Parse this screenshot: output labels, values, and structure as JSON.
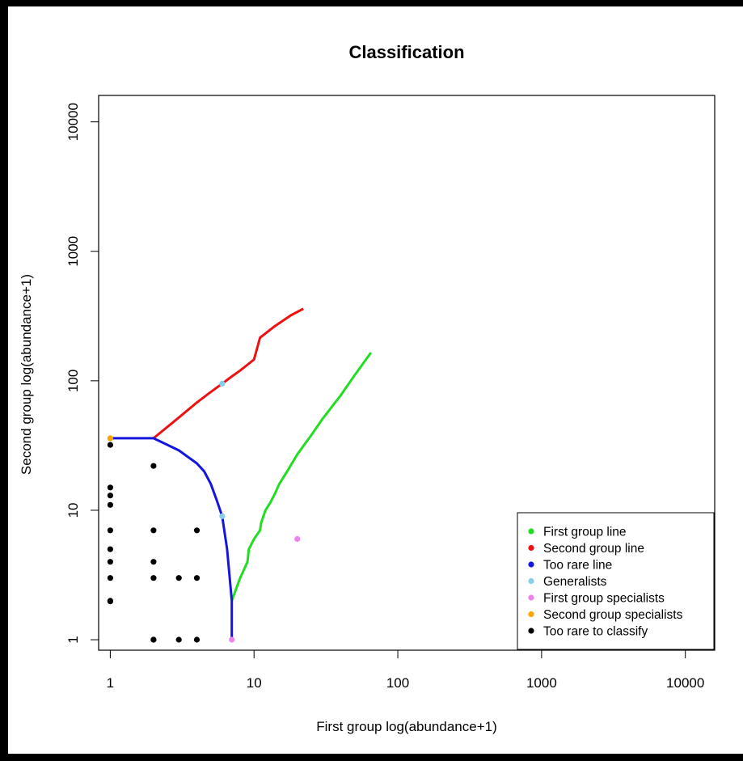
{
  "chart_data": {
    "type": "scatter",
    "title": "Classification",
    "xlabel": "First group log(abundance+1)",
    "ylabel": "Second group log(abundance+1)",
    "x_scale": "log",
    "y_scale": "log",
    "xlim": [
      0.83,
      16000
    ],
    "ylim": [
      0.83,
      16000
    ],
    "x_ticks": [
      1,
      10,
      100,
      1000,
      10000
    ],
    "x_tick_labels": [
      "1",
      "10",
      "100",
      "1000",
      "10000"
    ],
    "y_ticks": [
      1,
      10,
      100,
      1000,
      10000
    ],
    "y_tick_labels": [
      "1",
      "10",
      "100",
      "1000",
      "10000"
    ],
    "grid": false,
    "legend_position": "bottom-right",
    "colors": {
      "first_group_line": "#22dd22",
      "second_group_line": "#ee1111",
      "too_rare_line": "#1515dd",
      "generalists": "#87ceeb",
      "first_group_specialists": "#ee82ee",
      "second_group_specialists": "#ffa500",
      "too_rare": "#000000"
    },
    "lines": [
      {
        "name": "First group line",
        "color_key": "first_group_line",
        "x": [
          7,
          8,
          9,
          9.2,
          10,
          11,
          11.2,
          12,
          13,
          14,
          15,
          17,
          20,
          25,
          30,
          40,
          50,
          65
        ],
        "y": [
          2,
          3,
          4,
          5,
          6,
          7,
          8,
          10,
          11.5,
          13.5,
          16,
          20,
          27,
          38,
          51,
          77,
          110,
          165
        ]
      },
      {
        "name": "Second group line",
        "color_key": "second_group_line",
        "x": [
          2,
          3,
          4,
          5,
          6,
          7,
          8,
          9,
          10,
          11,
          14,
          18,
          22
        ],
        "y": [
          36,
          52,
          68,
          82,
          95,
          108,
          120,
          133,
          146,
          215,
          265,
          320,
          360
        ]
      },
      {
        "name": "Too rare line",
        "color_key": "too_rare_line",
        "x": [
          1,
          2,
          3,
          4,
          4.5,
          5,
          5.5,
          6,
          6.5,
          7,
          7
        ],
        "y": [
          36,
          36,
          29,
          23,
          20,
          16,
          12,
          9,
          5,
          2,
          1
        ]
      }
    ],
    "points": [
      {
        "name": "Generalists",
        "color_key": "generalists",
        "x": [
          6,
          6
        ],
        "y": [
          95,
          9
        ]
      },
      {
        "name": "First group specialists",
        "color_key": "first_group_specialists",
        "x": [
          7,
          20
        ],
        "y": [
          1,
          6
        ]
      },
      {
        "name": "Second group specialists",
        "color_key": "second_group_specialists",
        "x": [
          1
        ],
        "y": [
          36
        ]
      },
      {
        "name": "Too rare to classify",
        "color_key": "too_rare",
        "x": [
          1,
          1,
          1,
          1,
          1,
          1,
          1,
          1,
          1,
          1,
          2,
          2,
          2,
          2,
          2,
          2,
          3,
          3,
          4,
          4,
          4
        ],
        "y": [
          32,
          15,
          13,
          11,
          7,
          5,
          4,
          3,
          2,
          1.98,
          22,
          7,
          4,
          3,
          1,
          1,
          3,
          1,
          7,
          3,
          1
        ]
      }
    ],
    "legend": [
      {
        "label": "First group line",
        "color_key": "first_group_line"
      },
      {
        "label": "Second group line",
        "color_key": "second_group_line"
      },
      {
        "label": "Too rare line",
        "color_key": "too_rare_line"
      },
      {
        "label": "Generalists",
        "color_key": "generalists"
      },
      {
        "label": "First group specialists",
        "color_key": "first_group_specialists"
      },
      {
        "label": "Second group specialists",
        "color_key": "second_group_specialists"
      },
      {
        "label": "Too rare to classify",
        "color_key": "too_rare"
      }
    ]
  }
}
